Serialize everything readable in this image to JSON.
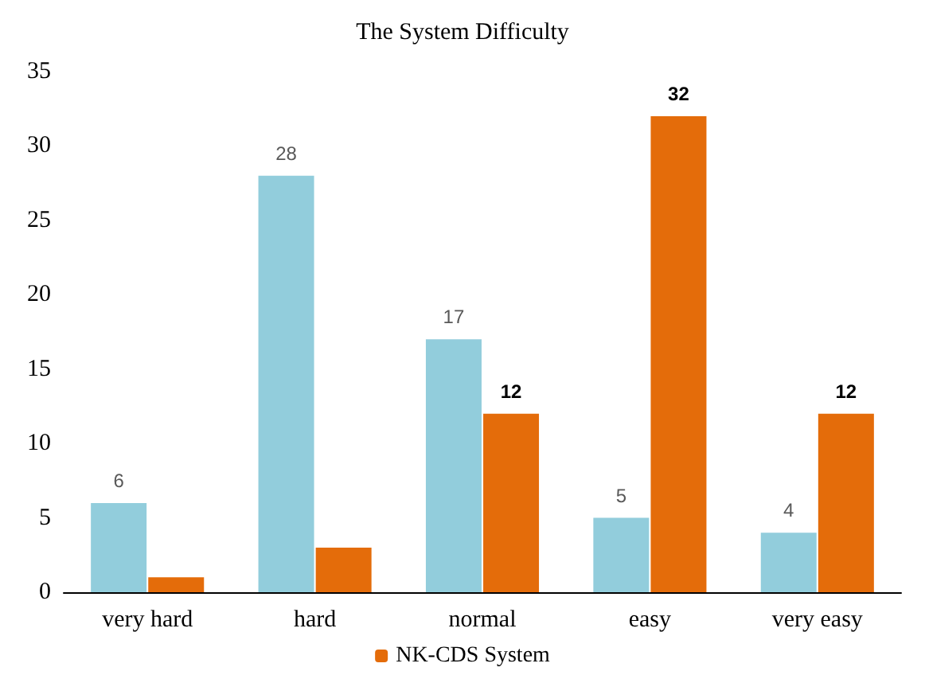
{
  "chart_data": {
    "type": "bar",
    "title": "The System Difficulty",
    "categories": [
      "very hard",
      "hard",
      "normal",
      "easy",
      "very easy"
    ],
    "series": [
      {
        "color": "#92cddc",
        "values": [
          6,
          28,
          17,
          5,
          4
        ],
        "value_labels": [
          "6",
          "28",
          "17",
          "5",
          "4"
        ]
      },
      {
        "name": "NK-CDS System",
        "color": "#e46c0a",
        "values": [
          1,
          3,
          12,
          32,
          12
        ],
        "value_labels": [
          null,
          null,
          "12",
          "32",
          "12"
        ]
      }
    ],
    "ylim": [
      0,
      35
    ],
    "yticks": [
      0,
      5,
      10,
      15,
      20,
      25,
      30,
      35
    ],
    "grid": false,
    "legend": "bottom"
  }
}
